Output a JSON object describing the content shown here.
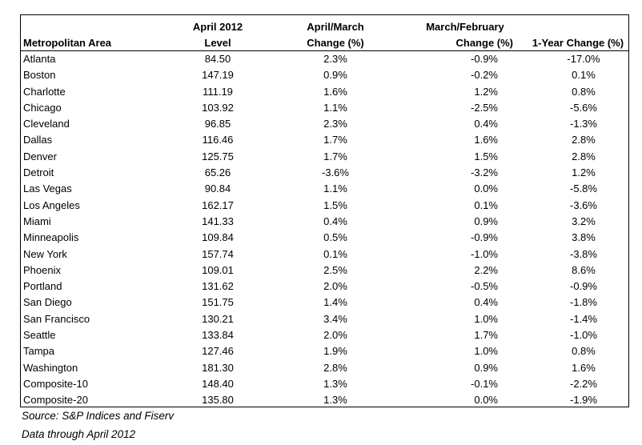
{
  "headers": {
    "area": "Metropolitan Area",
    "level_line1": "April 2012",
    "level_line2": "Level",
    "am_line1": "April/March",
    "am_line2": "Change (%)",
    "mf_line1": "March/February",
    "mf_line2": "Change (%)",
    "yr": "1-Year Change (%)"
  },
  "rows": [
    {
      "area": "Atlanta",
      "level": "84.50",
      "am": "2.3%",
      "mf": "-0.9%",
      "yr": "-17.0%"
    },
    {
      "area": "Boston",
      "level": "147.19",
      "am": "0.9%",
      "mf": "-0.2%",
      "yr": "0.1%"
    },
    {
      "area": "Charlotte",
      "level": "111.19",
      "am": "1.6%",
      "mf": "1.2%",
      "yr": "0.8%"
    },
    {
      "area": "Chicago",
      "level": "103.92",
      "am": "1.1%",
      "mf": "-2.5%",
      "yr": "-5.6%"
    },
    {
      "area": "Cleveland",
      "level": "96.85",
      "am": "2.3%",
      "mf": "0.4%",
      "yr": "-1.3%"
    },
    {
      "area": "Dallas",
      "level": "116.46",
      "am": "1.7%",
      "mf": "1.6%",
      "yr": "2.8%"
    },
    {
      "area": "Denver",
      "level": "125.75",
      "am": "1.7%",
      "mf": "1.5%",
      "yr": "2.8%"
    },
    {
      "area": "Detroit",
      "level": "65.26",
      "am": "-3.6%",
      "mf": "-3.2%",
      "yr": "1.2%"
    },
    {
      "area": "Las Vegas",
      "level": "90.84",
      "am": "1.1%",
      "mf": "0.0%",
      "yr": "-5.8%"
    },
    {
      "area": "Los Angeles",
      "level": "162.17",
      "am": "1.5%",
      "mf": "0.1%",
      "yr": "-3.6%"
    },
    {
      "area": "Miami",
      "level": "141.33",
      "am": "0.4%",
      "mf": "0.9%",
      "yr": "3.2%"
    },
    {
      "area": "Minneapolis",
      "level": "109.84",
      "am": "0.5%",
      "mf": "-0.9%",
      "yr": "3.8%"
    },
    {
      "area": "New York",
      "level": "157.74",
      "am": "0.1%",
      "mf": "-1.0%",
      "yr": "-3.8%"
    },
    {
      "area": "Phoenix",
      "level": "109.01",
      "am": "2.5%",
      "mf": "2.2%",
      "yr": "8.6%"
    },
    {
      "area": "Portland",
      "level": "131.62",
      "am": "2.0%",
      "mf": "-0.5%",
      "yr": "-0.9%"
    },
    {
      "area": "San Diego",
      "level": "151.75",
      "am": "1.4%",
      "mf": "0.4%",
      "yr": "-1.8%"
    },
    {
      "area": "San Francisco",
      "level": "130.21",
      "am": "3.4%",
      "mf": "1.0%",
      "yr": "-1.4%"
    },
    {
      "area": "Seattle",
      "level": "133.84",
      "am": "2.0%",
      "mf": "1.7%",
      "yr": "-1.0%"
    },
    {
      "area": "Tampa",
      "level": "127.46",
      "am": "1.9%",
      "mf": "1.0%",
      "yr": "0.8%"
    },
    {
      "area": "Washington",
      "level": "181.30",
      "am": "2.8%",
      "mf": "0.9%",
      "yr": "1.6%"
    },
    {
      "area": "Composite-10",
      "level": "148.40",
      "am": "1.3%",
      "mf": "-0.1%",
      "yr": "-2.2%"
    },
    {
      "area": "Composite-20",
      "level": "135.80",
      "am": "1.3%",
      "mf": "0.0%",
      "yr": "-1.9%"
    }
  ],
  "source": "Source: S&P Indices and Fiserv",
  "data_note": "Data through April 2012"
}
